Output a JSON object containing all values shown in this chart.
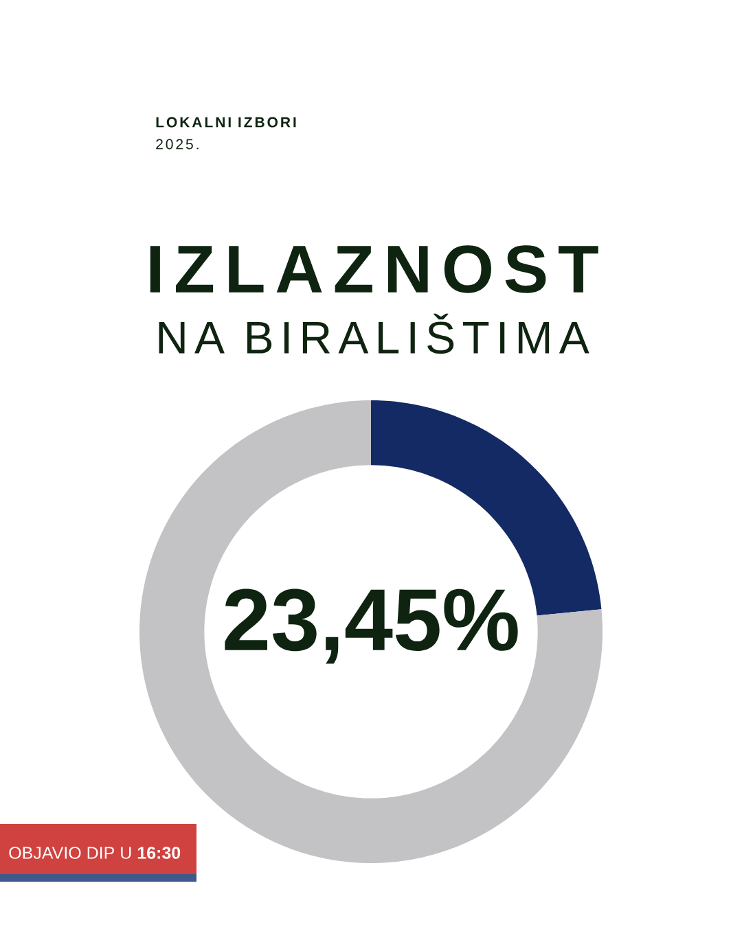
{
  "chart_data": {
    "type": "donut",
    "title": "IZLAZNOST",
    "subtitle": "NA BIRALIŠTIMA",
    "categories": [
      null,
      null
    ],
    "values": [
      23.45,
      76.55
    ],
    "colors": [
      "#142a64",
      "#c3c2c5"
    ],
    "value_labels": [
      "23,45%",
      null
    ],
    "annotations": [
      "LOKALNI IZBORI",
      "2025.",
      "OBJAVIO DIP U **16:30**"
    ]
  }
}
